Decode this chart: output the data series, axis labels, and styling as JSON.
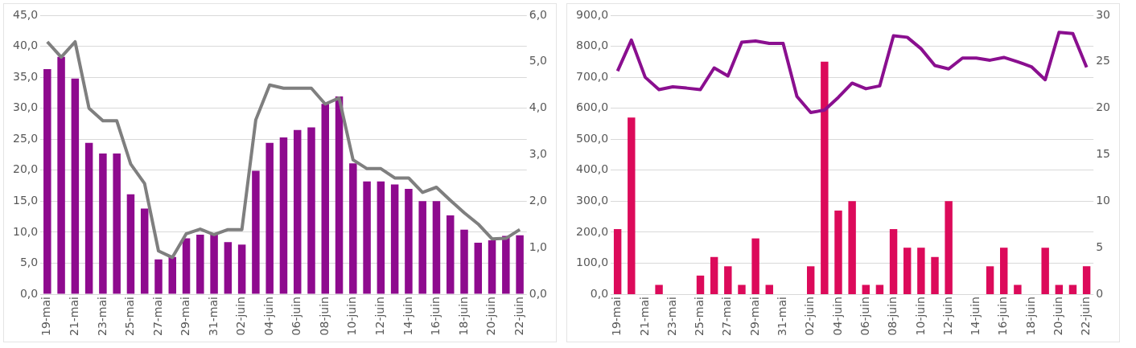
{
  "chart_data": [
    {
      "type": "bar",
      "categories": [
        "19-mai",
        null,
        "21-mai",
        null,
        "23-mai",
        null,
        "25-mai",
        null,
        "27-mai",
        null,
        "29-mai",
        null,
        "31-mai",
        null,
        "02-juin",
        null,
        "04-juin",
        null,
        "06-juin",
        null,
        "08-juin",
        null,
        "10-juin",
        null,
        "12-juin",
        null,
        "14-juin",
        null,
        "16-juin",
        null,
        "18-juin",
        null,
        "20-juin",
        null,
        "22-juin"
      ],
      "series": [
        {
          "color": "#8e0a8e",
          "values": [
            36.3,
            38.3,
            34.8,
            24.4,
            22.7,
            22.7,
            16.1,
            13.8,
            5.6,
            6.0,
            9.0,
            9.6,
            9.8,
            8.4,
            8.0,
            19.9,
            24.4,
            25.3,
            26.5,
            26.9,
            30.7,
            31.9,
            21.1,
            18.2,
            18.2,
            17.7,
            17.0,
            15.0,
            15.0,
            12.7,
            10.4,
            8.3,
            8.7,
            9.4,
            9.5
          ]
        },
        {
          "type": "line",
          "axis": "y2",
          "color": "#7f7f7f",
          "values": [
            5.43,
            5.1,
            5.43,
            4.0,
            3.73,
            3.73,
            2.8,
            2.38,
            0.93,
            0.79,
            1.3,
            1.4,
            1.28,
            1.39,
            1.39,
            3.75,
            4.5,
            4.43,
            4.43,
            4.43,
            4.09,
            4.22,
            2.89,
            2.7,
            2.7,
            2.5,
            2.5,
            2.19,
            2.3,
            2.02,
            1.75,
            1.51,
            1.19,
            1.2,
            1.39
          ]
        }
      ],
      "ylim": [
        0,
        45
      ],
      "yticks": [
        {
          "value": 0,
          "label": "0,0"
        },
        {
          "value": 5,
          "label": "5,0"
        },
        {
          "value": 10,
          "label": "10,0"
        },
        {
          "value": 15,
          "label": "15,0"
        },
        {
          "value": 20,
          "label": "20,0"
        },
        {
          "value": 25,
          "label": "25,0"
        },
        {
          "value": 30,
          "label": "30,0"
        },
        {
          "value": 35,
          "label": "35,0"
        },
        {
          "value": 40,
          "label": "40,0"
        },
        {
          "value": 45,
          "label": "45,0"
        }
      ],
      "y2lim": [
        0,
        6
      ],
      "y2ticks": [
        {
          "value": 0,
          "label": "0,0"
        },
        {
          "value": 1,
          "label": "1,0"
        },
        {
          "value": 2,
          "label": "2,0"
        },
        {
          "value": 3,
          "label": "3,0"
        },
        {
          "value": 4,
          "label": "4,0"
        },
        {
          "value": 5,
          "label": "5,0"
        },
        {
          "value": 6,
          "label": "6,0"
        }
      ],
      "grid": "y",
      "legend": false
    },
    {
      "type": "bar",
      "categories": [
        "19-mai",
        null,
        "21-mai",
        null,
        "23-mai",
        null,
        "25-mai",
        null,
        "27-mai",
        null,
        "29-mai",
        null,
        "31-mai",
        null,
        "02-juin",
        null,
        "04-juin",
        null,
        "06-juin",
        null,
        "08-juin",
        null,
        "10-juin",
        null,
        "12-juin",
        null,
        "14-juin",
        null,
        "16-juin",
        null,
        "18-juin",
        null,
        "20-juin",
        null,
        "22-juin"
      ],
      "series": [
        {
          "axis": "y2",
          "color": "#dc0a5a",
          "values": [
            7,
            19,
            0,
            1,
            0,
            0,
            2,
            4,
            3,
            1,
            6,
            1,
            0,
            0,
            3,
            25,
            9,
            10,
            1,
            1,
            7,
            5,
            5,
            4,
            10,
            0,
            0,
            3,
            5,
            1,
            0,
            5,
            1,
            1,
            3
          ]
        },
        {
          "type": "line",
          "color": "#8a0f8f",
          "values": [
            720,
            820,
            700,
            660,
            669,
            665,
            660,
            730,
            704,
            813,
            817,
            809,
            809,
            638,
            586,
            594,
            635,
            681,
            663,
            672,
            834,
            829,
            792,
            738,
            727,
            762,
            762,
            755,
            764,
            750,
            734,
            692,
            845,
            841,
            732
          ]
        }
      ],
      "ylim": [
        0,
        900
      ],
      "yticks": [
        {
          "value": 0,
          "label": "0,0"
        },
        {
          "value": 100,
          "label": "100,0"
        },
        {
          "value": 200,
          "label": "200,0"
        },
        {
          "value": 300,
          "label": "300,0"
        },
        {
          "value": 400,
          "label": "400,0"
        },
        {
          "value": 500,
          "label": "500,0"
        },
        {
          "value": 600,
          "label": "600,0"
        },
        {
          "value": 700,
          "label": "700,0"
        },
        {
          "value": 800,
          "label": "800,0"
        },
        {
          "value": 900,
          "label": "900,0"
        }
      ],
      "y2lim": [
        0,
        30
      ],
      "y2ticks": [
        0,
        5,
        10,
        15,
        20,
        25,
        30
      ],
      "grid": "y",
      "legend": false
    }
  ]
}
